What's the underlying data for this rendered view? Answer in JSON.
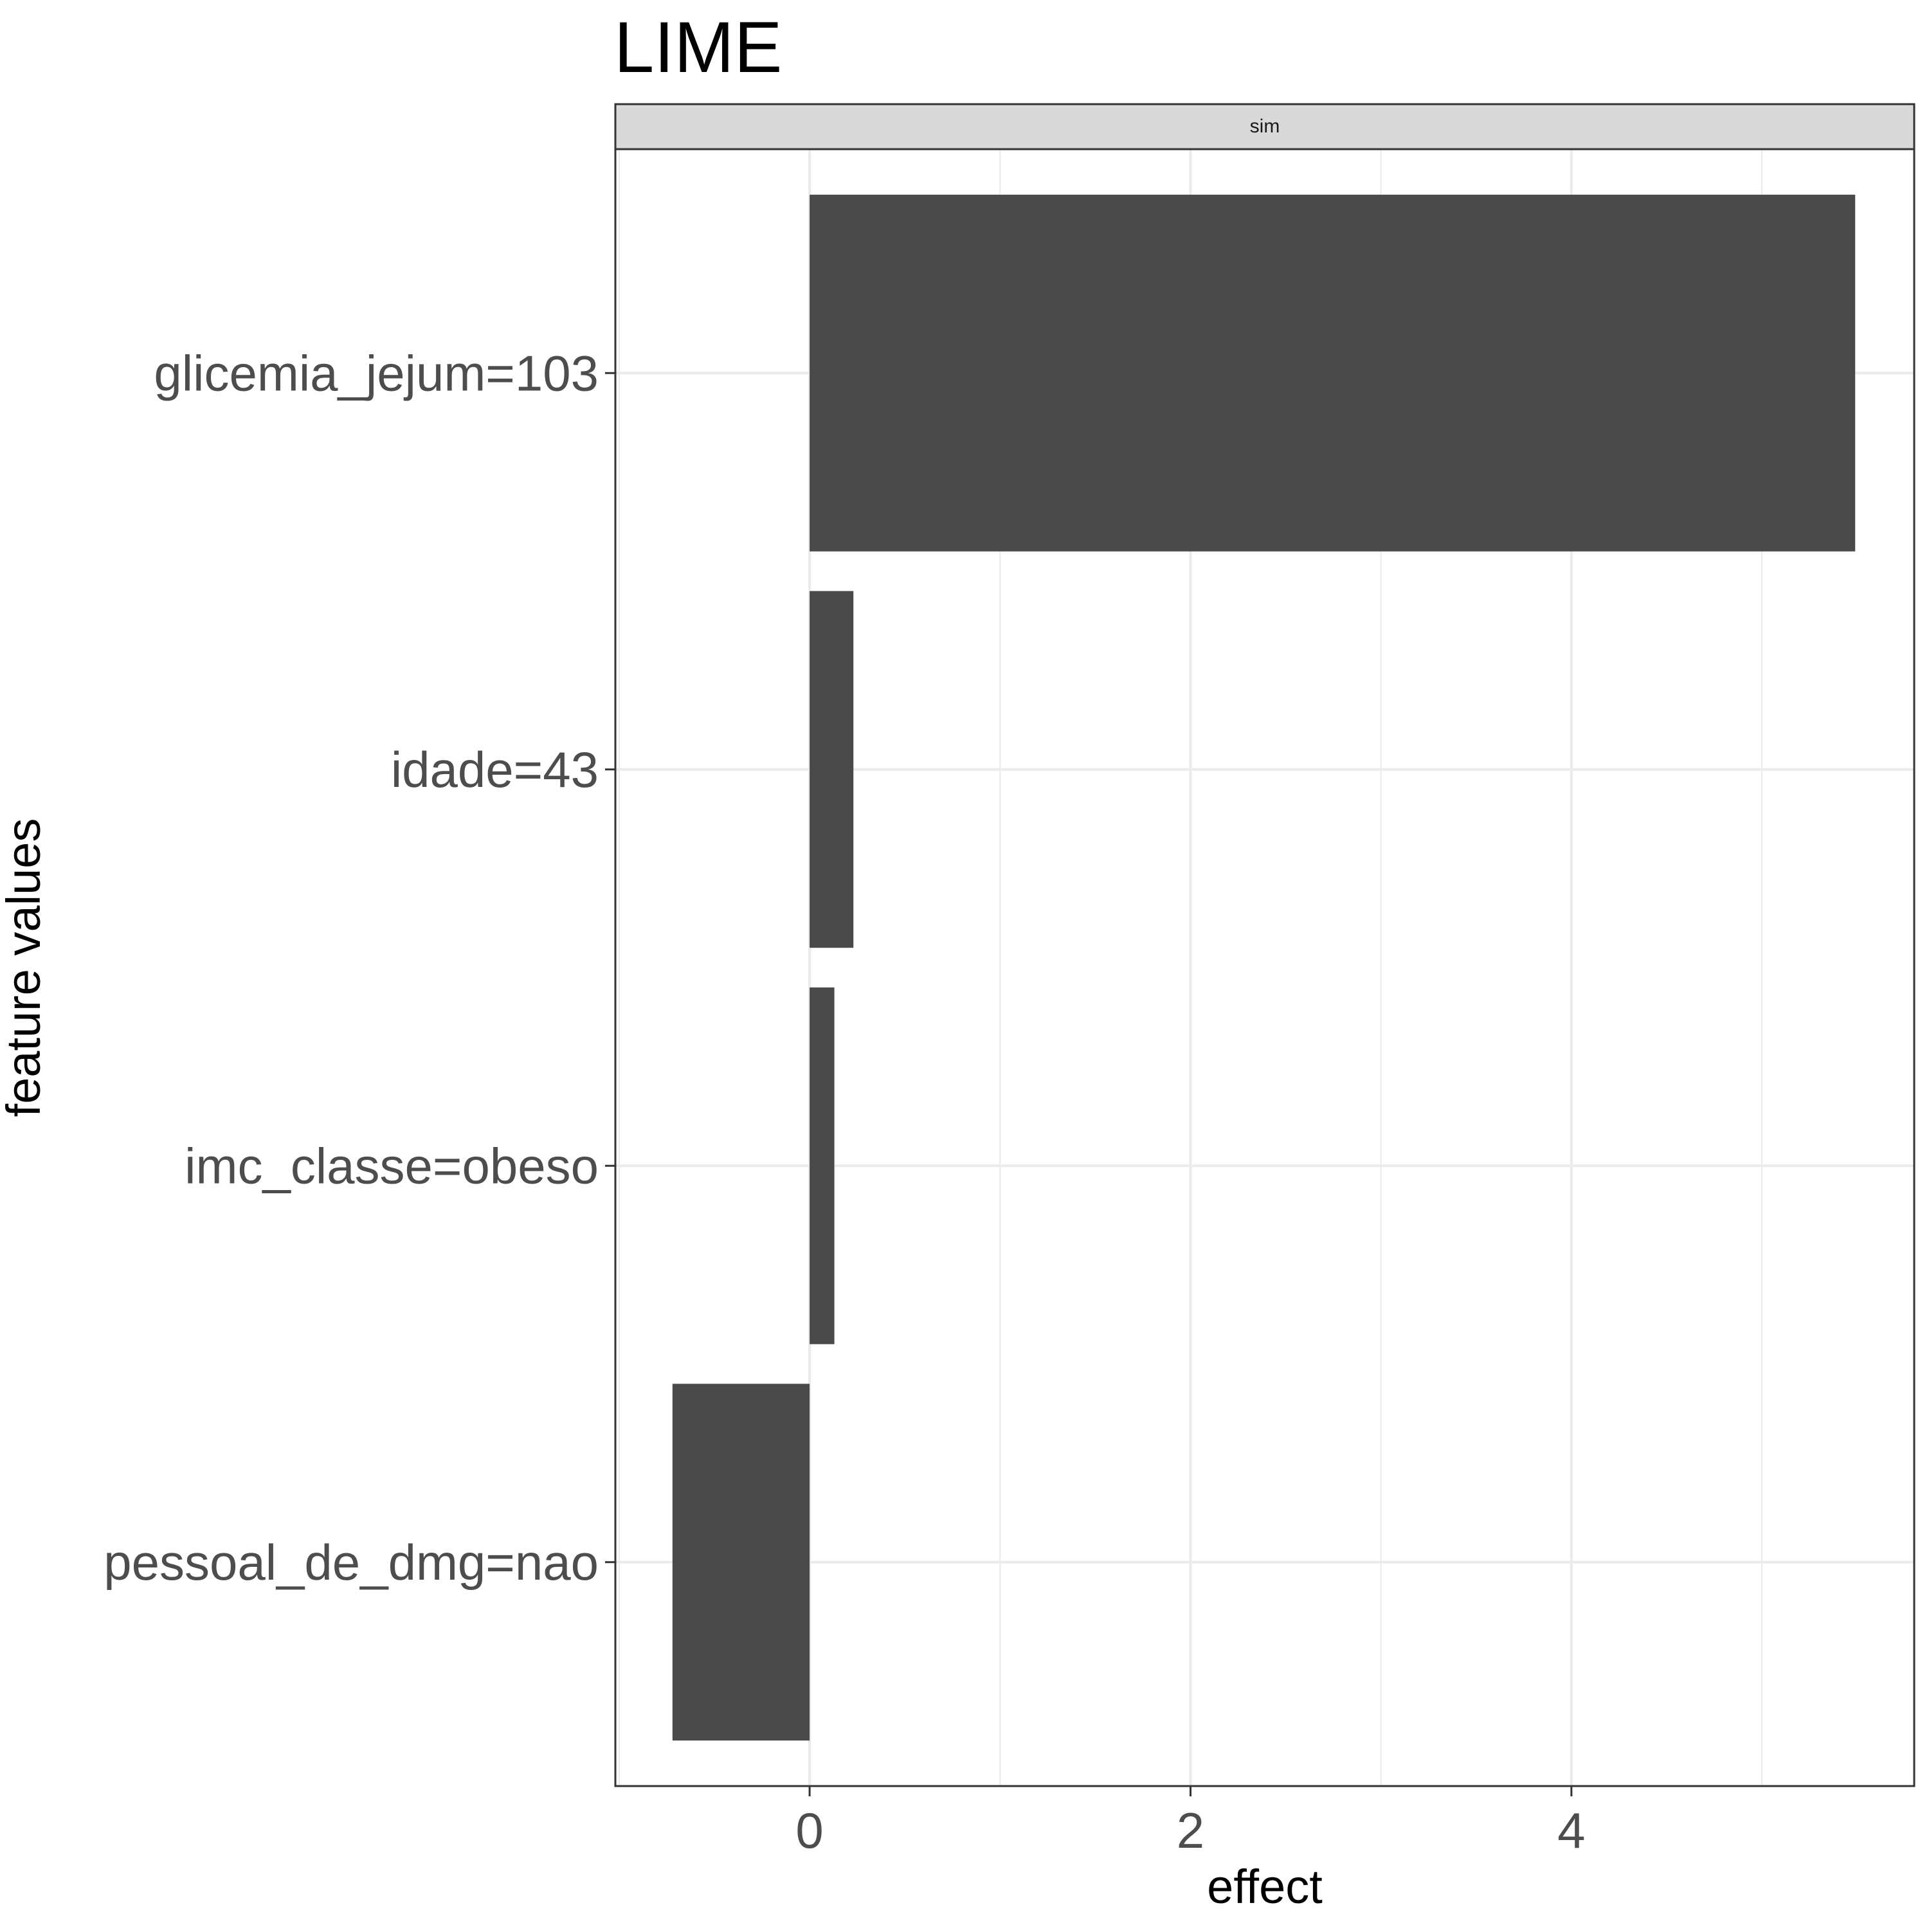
{
  "chart_data": {
    "type": "bar",
    "orientation": "horizontal",
    "title": "LIME",
    "facet_label": "sim",
    "xlabel": "effect",
    "ylabel": "feature values",
    "categories": [
      "glicemia_jejum=103",
      "idade=43",
      "imc_classe=obeso",
      "pessoal_de_dmg=nao"
    ],
    "values": [
      5.49,
      0.23,
      0.13,
      -0.72
    ],
    "xlim": [
      -1.02,
      5.8
    ],
    "xticks": [
      0,
      2,
      4
    ],
    "grid": true,
    "legend": "none",
    "bar_color": "#494949",
    "panel_border_color": "#333333",
    "grid_color": "#ebebeb",
    "strip_fill": "#d9d9d9"
  }
}
